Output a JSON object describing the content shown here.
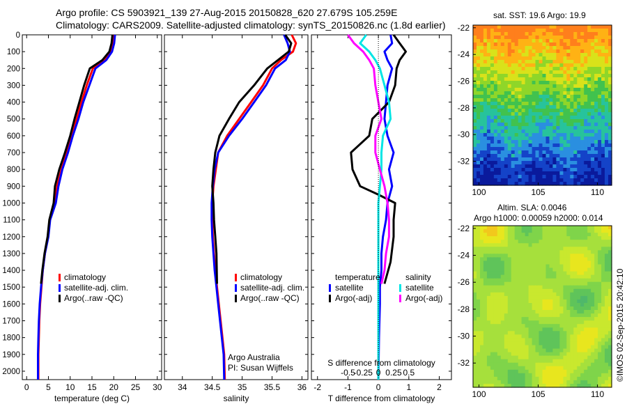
{
  "header": {
    "line1": "Argo profile: CS 5903921_139 27-Aug-2015 20150828_620 27.679S 105.259E",
    "line2": "Climatology: CARS2009. Satellite-adjusted climatology: synTS_20150826.nc (1.8d earlier)"
  },
  "sst_title": "sat. SST: 19.6 Argo: 19.9",
  "sla_title1": "Altim. SLA: 0.0046",
  "sla_title2": "Argo h1000: 0.00059 h2000: 0.014",
  "credit": "©IMOS 02-Sep-2015 20:42:10",
  "info": {
    "org": "Argo Australia",
    "pi": "PI: Susan Wijffels"
  },
  "colors": {
    "climatology": "#ff0000",
    "satellite": "#0000ff",
    "argo": "#000000",
    "sal_sat": "#00e5e5",
    "sal_argo": "#ff00ff"
  },
  "legend_profile": [
    "climatology",
    "satellite-adj. clim.",
    "Argo(..raw -QC)"
  ],
  "legend_diff": {
    "temp_head": "temperature",
    "sal_head": "salinity",
    "temp_items": [
      "satellite",
      "Argo(-adj)"
    ],
    "sal_items": [
      "satellite",
      "Argo(-adj)"
    ]
  },
  "chart_data": [
    {
      "type": "line",
      "xlabel": "temperature (deg C)",
      "xlim": [
        -1,
        31
      ],
      "ylim": [
        2050,
        0
      ],
      "xticks": [
        0,
        5,
        10,
        15,
        20,
        25,
        30
      ],
      "yticks": [
        0,
        100,
        200,
        300,
        400,
        500,
        600,
        700,
        800,
        900,
        1000,
        1100,
        1200,
        1300,
        1400,
        1500,
        1600,
        1700,
        1800,
        1900,
        2000
      ],
      "series": [
        {
          "name": "climatology",
          "x": [
            19.9,
            19.8,
            19.4,
            18,
            15.2,
            13.8,
            12.6,
            11.5,
            10.3,
            9.2,
            8,
            7,
            6.5,
            5.3,
            4.9,
            4.2,
            3.7,
            3.4,
            3.1,
            2.9,
            2.8,
            2.7,
            2.7
          ],
          "y": [
            0,
            50,
            100,
            150,
            200,
            300,
            400,
            500,
            600,
            700,
            800,
            900,
            1000,
            1100,
            1200,
            1300,
            1400,
            1500,
            1600,
            1700,
            1800,
            1900,
            2050
          ]
        },
        {
          "name": "satellite-adj. clim.",
          "x": [
            20.3,
            20.1,
            19.6,
            18.3,
            15.8,
            14.4,
            13,
            11.9,
            10.6,
            9.5,
            8.2,
            7.3,
            6.7,
            5.4,
            5,
            4.2,
            3.7,
            3.3,
            3,
            2.8,
            2.7,
            2.6,
            2.6
          ],
          "y": [
            0,
            50,
            100,
            150,
            200,
            300,
            400,
            500,
            600,
            700,
            800,
            900,
            1000,
            1100,
            1200,
            1300,
            1400,
            1500,
            1600,
            1700,
            1800,
            1900,
            2050
          ]
        },
        {
          "name": "Argo(..raw -QC)",
          "x": [
            19.7,
            19.5,
            19,
            17.4,
            14.5,
            13.2,
            12.1,
            11,
            10,
            8.8,
            7.5,
            6.5,
            6.2,
            5.2,
            4.8,
            4.1,
            3.6,
            3.3
          ],
          "y": [
            0,
            50,
            100,
            150,
            200,
            300,
            400,
            500,
            600,
            700,
            800,
            900,
            1000,
            1100,
            1200,
            1300,
            1400,
            1480
          ]
        }
      ]
    },
    {
      "type": "line",
      "xlabel": "salinity",
      "xlim": [
        33.7,
        36.1
      ],
      "ylim": [
        2050,
        0
      ],
      "xticks": [
        34,
        34.5,
        35,
        35.5,
        36
      ],
      "series": [
        {
          "name": "climatology",
          "x": [
            35.83,
            35.9,
            35.85,
            35.65,
            35.5,
            35.35,
            35.15,
            34.95,
            34.75,
            34.6,
            34.56,
            34.52,
            34.5,
            34.5,
            34.51,
            34.53,
            34.55,
            34.58,
            34.61,
            34.64,
            34.67,
            34.7,
            34.71
          ],
          "y": [
            0,
            50,
            100,
            150,
            200,
            300,
            400,
            500,
            600,
            700,
            800,
            900,
            1000,
            1100,
            1200,
            1300,
            1400,
            1500,
            1600,
            1700,
            1800,
            1900,
            2050
          ]
        },
        {
          "name": "satellite-adj. clim.",
          "x": [
            35.7,
            35.76,
            35.8,
            35.73,
            35.55,
            35.4,
            35.2,
            35,
            34.78,
            34.6,
            34.54,
            34.51,
            34.49,
            34.49,
            34.5,
            34.52,
            34.54,
            34.57,
            34.6,
            34.63,
            34.66,
            34.69,
            34.7
          ],
          "y": [
            0,
            50,
            100,
            150,
            200,
            300,
            400,
            500,
            600,
            700,
            800,
            900,
            1000,
            1100,
            1200,
            1300,
            1400,
            1500,
            1600,
            1700,
            1800,
            1900,
            2050
          ]
        },
        {
          "name": "Argo(..raw -QC)",
          "x": [
            35.72,
            35.82,
            35.78,
            35.6,
            35.42,
            35.2,
            34.95,
            34.78,
            34.62,
            34.55,
            34.52,
            34.5,
            34.52,
            34.53,
            34.55,
            34.57,
            34.58
          ],
          "y": [
            0,
            50,
            100,
            150,
            200,
            300,
            400,
            500,
            600,
            700,
            800,
            900,
            1000,
            1100,
            1200,
            1300,
            1480
          ]
        }
      ]
    },
    {
      "type": "line",
      "xlabel": "T difference from climatology",
      "x2label": "S difference from climatology",
      "xlim": [
        -2.2,
        2.4
      ],
      "ylim": [
        2050,
        0
      ],
      "xticks": [
        -2,
        -1,
        0,
        1,
        2
      ],
      "x2ticks": [
        "-0.5",
        "-0.25",
        "0",
        "0.25",
        "0.5"
      ],
      "series": [
        {
          "name": "temperature satellite",
          "x": [
            0.4,
            0.45,
            0.2,
            0.3,
            0.45,
            0.3,
            0.25,
            0.2,
            0.3,
            0.5,
            0.35,
            0.45,
            0.3,
            0.25,
            0.15,
            0.1,
            0.1,
            0.05,
            0.05,
            0.02,
            0.0
          ],
          "y": [
            0,
            50,
            100,
            150,
            200,
            300,
            400,
            500,
            600,
            700,
            800,
            900,
            1000,
            1100,
            1200,
            1300,
            1400,
            1500,
            1600,
            1800,
            2050
          ]
        },
        {
          "name": "temperature Argo(-adj)",
          "x": [
            0.5,
            0.7,
            0.9,
            0.7,
            0.6,
            0.55,
            0.35,
            -0.2,
            -0.3,
            -0.9,
            -0.85,
            -0.6,
            0.0,
            0.55,
            0.5,
            0.5,
            0.4,
            0.2
          ],
          "y": [
            0,
            50,
            100,
            150,
            200,
            300,
            400,
            500,
            600,
            700,
            800,
            900,
            950,
            1000,
            1100,
            1200,
            1350,
            1480
          ]
        },
        {
          "name": "salinity satellite",
          "x": [
            -0.4,
            -0.6,
            -0.3,
            -0.1,
            0.05,
            0.2,
            0.35,
            0.4,
            0.15,
            0.1,
            0.1,
            0.05,
            0.0,
            0.0,
            0.0,
            0.0,
            0.0,
            0.0,
            0.0,
            0.0,
            0.0
          ],
          "y": [
            0,
            50,
            100,
            150,
            200,
            300,
            400,
            500,
            600,
            700,
            800,
            900,
            1000,
            1100,
            1200,
            1300,
            1400,
            1500,
            1600,
            1800,
            2050
          ]
        },
        {
          "name": "salinity Argo(-adj)",
          "x": [
            -1.0,
            -0.8,
            -0.5,
            -0.3,
            -0.15,
            -0.1,
            0.0,
            0.1,
            -0.1,
            -0.1,
            0.05,
            0.2,
            0.3,
            0.35,
            0.35,
            0.25,
            0.2,
            0.1
          ],
          "y": [
            0,
            50,
            100,
            150,
            200,
            300,
            400,
            500,
            600,
            700,
            800,
            900,
            1000,
            1100,
            1200,
            1300,
            1400,
            1480
          ]
        }
      ]
    },
    {
      "type": "heatmap",
      "title": "sat. SST: 19.6 Argo: 19.9",
      "xlim": [
        99.5,
        111.2
      ],
      "ylim": [
        -33.8,
        -21.8
      ],
      "xticks": [
        100,
        105,
        110
      ],
      "yticks": [
        -32,
        -30,
        -28,
        -26,
        -24,
        -22
      ],
      "bands": [
        "#ff7f1c",
        "#ffb214",
        "#d9e21a",
        "#8fd629",
        "#41c24e",
        "#27c39c",
        "#2a8fe0",
        "#1443c8",
        "#0a1a9c"
      ]
    },
    {
      "type": "heatmap",
      "title": "Altim. SLA: 0.0046",
      "xlim": [
        99.5,
        111.2
      ],
      "ylim": [
        -33.8,
        -21.8
      ],
      "xticks": [
        100,
        105,
        110
      ],
      "yticks": [
        -32,
        -30,
        -28,
        -26,
        -24,
        -22
      ]
    }
  ]
}
